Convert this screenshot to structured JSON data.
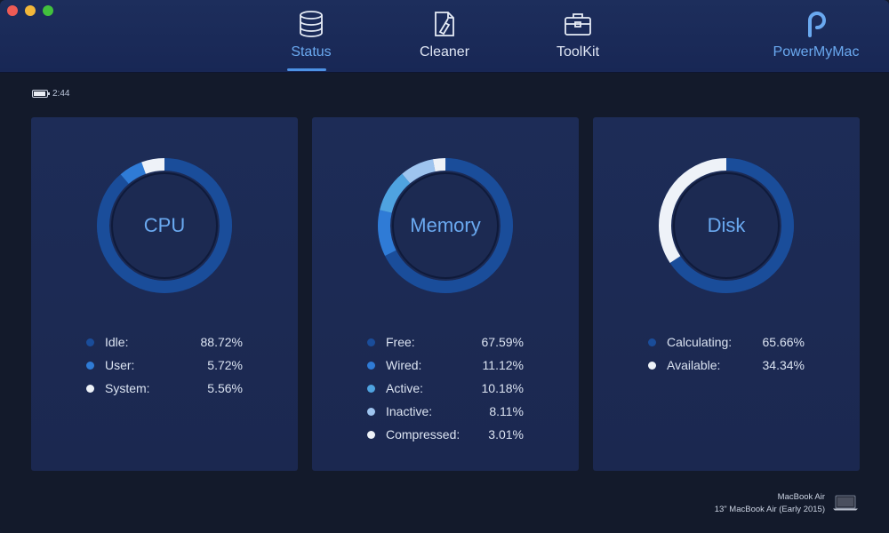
{
  "window": {
    "controls": [
      "close",
      "minimize",
      "maximize"
    ]
  },
  "nav": {
    "tabs": [
      {
        "label": "Status",
        "icon": "database-icon",
        "active": true
      },
      {
        "label": "Cleaner",
        "icon": "cleaner-icon",
        "active": false
      },
      {
        "label": "ToolKit",
        "icon": "toolkit-icon",
        "active": false
      }
    ],
    "brand": {
      "label": "PowerMyMac",
      "icon": "powermymac-logo-icon"
    }
  },
  "battery": {
    "time": "2:44",
    "icon": "battery-icon"
  },
  "cards": {
    "cpu": {
      "title": "CPU",
      "items": [
        {
          "label": "Idle:",
          "value": "88.72%",
          "fraction": 0.8872,
          "color": "#1a4d9a"
        },
        {
          "label": "User:",
          "value": "5.72%",
          "fraction": 0.0572,
          "color": "#2f7bd6"
        },
        {
          "label": "System:",
          "value": "5.56%",
          "fraction": 0.0556,
          "color": "#eef2f8"
        }
      ]
    },
    "memory": {
      "title": "Memory",
      "items": [
        {
          "label": "Free:",
          "value": "67.59%",
          "fraction": 0.6759,
          "color": "#1a4d9a"
        },
        {
          "label": "Wired:",
          "value": "11.12%",
          "fraction": 0.1112,
          "color": "#2f7bd6"
        },
        {
          "label": "Active:",
          "value": "10.18%",
          "fraction": 0.1018,
          "color": "#4fa3e0"
        },
        {
          "label": "Inactive:",
          "value": "8.11%",
          "fraction": 0.0811,
          "color": "#9ec4ef"
        },
        {
          "label": "Compressed:",
          "value": "3.01%",
          "fraction": 0.0301,
          "color": "#eef2f8"
        }
      ]
    },
    "disk": {
      "title": "Disk",
      "items": [
        {
          "label": "Calculating:",
          "value": "65.66%",
          "fraction": 0.6566,
          "color": "#1a4d9a"
        },
        {
          "label": "Available:",
          "value": "34.34%",
          "fraction": 0.3434,
          "color": "#eef2f8"
        }
      ]
    }
  },
  "device": {
    "name": "MacBook Air",
    "model": "13\" MacBook Air (Early 2015)",
    "icon": "macbook-icon"
  }
}
